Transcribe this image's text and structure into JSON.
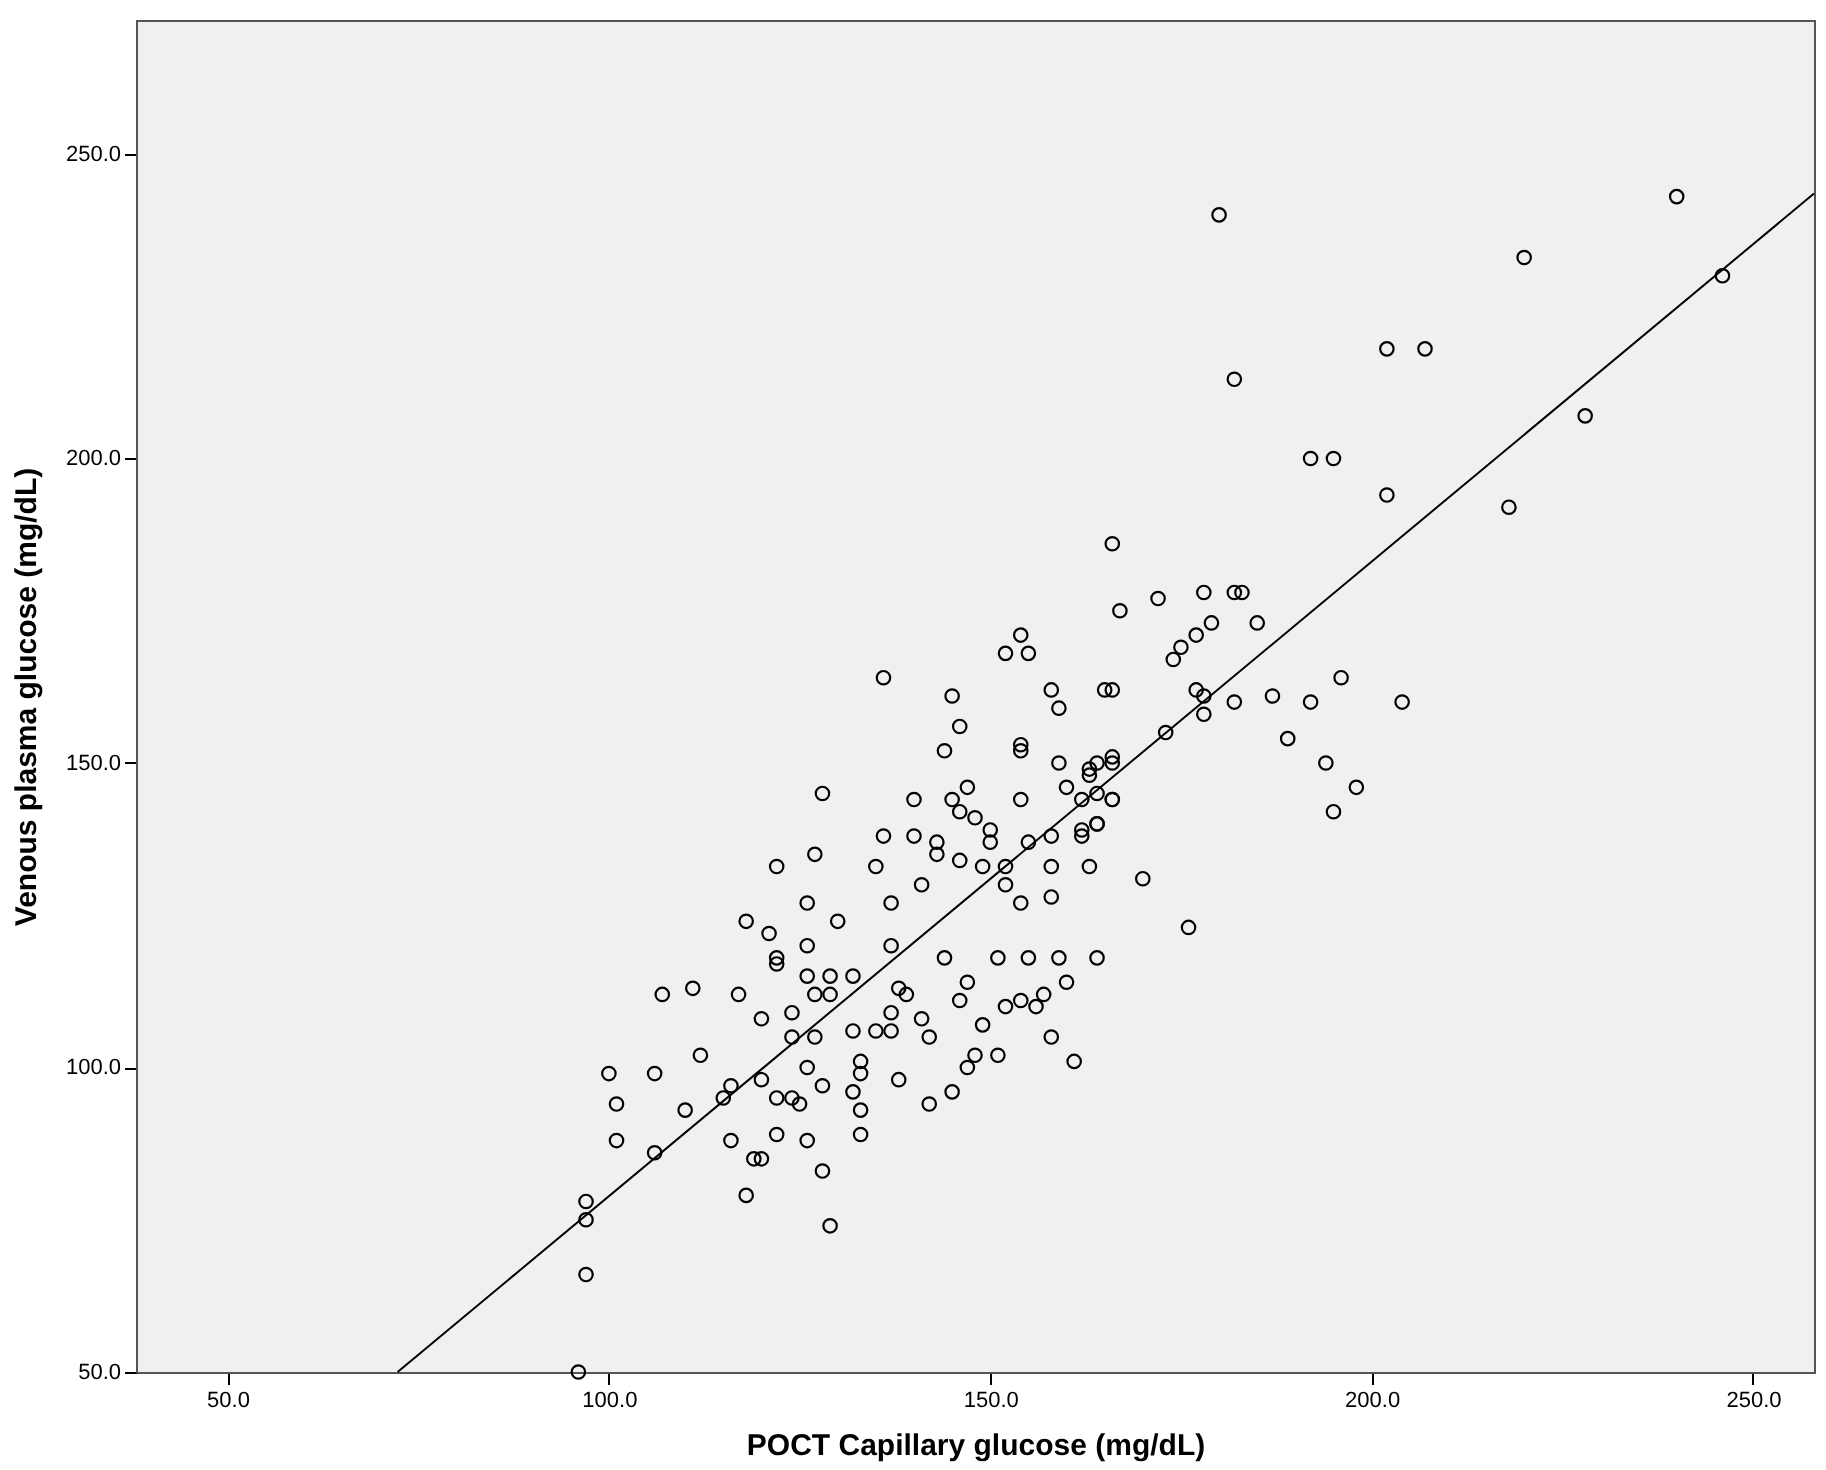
{
  "chart_data": {
    "type": "scatter",
    "xlabel": "POCT Capillary glucose (mg/dL)",
    "ylabel": "Venous plasma glucose (mg/dL)",
    "xlim": [
      38,
      258
    ],
    "ylim": [
      50,
      272
    ],
    "xticks": [
      {
        "value": 50,
        "label": "50.0"
      },
      {
        "value": 100,
        "label": "100.0"
      },
      {
        "value": 150,
        "label": "150.0"
      },
      {
        "value": 200,
        "label": "200.0"
      },
      {
        "value": 250,
        "label": "250.0"
      }
    ],
    "yticks": [
      {
        "value": 50,
        "label": "50.0"
      },
      {
        "value": 100,
        "label": "100.0"
      },
      {
        "value": 150,
        "label": "150.0"
      },
      {
        "value": 200,
        "label": "200.0"
      },
      {
        "value": 250,
        "label": "250.0"
      }
    ],
    "grid": false,
    "series": [
      {
        "color": "#000000",
        "marker": "circle",
        "x": [
          180,
          240,
          220,
          246,
          202,
          207,
          182,
          228,
          192,
          195,
          202,
          218,
          166,
          167,
          172,
          178,
          182,
          183,
          179,
          185,
          177,
          175,
          174,
          166,
          177,
          178,
          178,
          182,
          187,
          192,
          196,
          204,
          173,
          189,
          194,
          198,
          195,
          166,
          166,
          163,
          164,
          162,
          136,
          154,
          155,
          152,
          145,
          146,
          144,
          158,
          159,
          165,
          154,
          154,
          159,
          164,
          163,
          166,
          128,
          140,
          145,
          147,
          146,
          154,
          160,
          162,
          164,
          166,
          148,
          150,
          150,
          158,
          162,
          164,
          136,
          140,
          143,
          143,
          146,
          149,
          152,
          155,
          158,
          163,
          170,
          176,
          122,
          127,
          135,
          141,
          152,
          154,
          158,
          126,
          130,
          137,
          121,
          126,
          137,
          144,
          151,
          155,
          159,
          164,
          160,
          122,
          126,
          129,
          132,
          127,
          129,
          138,
          139,
          146,
          147,
          149,
          152,
          154,
          156,
          157,
          120,
          124,
          124,
          127,
          132,
          135,
          137,
          137,
          141,
          142,
          158,
          161,
          148,
          151,
          147,
          145,
          142,
          138,
          133,
          133,
          132,
          128,
          126,
          122,
          124,
          125,
          133,
          133,
          122,
          126,
          128,
          120,
          129,
          118,
          122,
          107,
          111,
          117,
          100,
          106,
          112,
          101,
          110,
          116,
          115,
          120,
          101,
          106,
          116,
          119,
          118,
          97,
          97,
          97,
          96
        ],
        "values": [
          240,
          243,
          233,
          230,
          218,
          218,
          213,
          207,
          200,
          200,
          194,
          192,
          186,
          175,
          177,
          178,
          178,
          178,
          173,
          173,
          171,
          169,
          167,
          162,
          162,
          161,
          158,
          160,
          161,
          160,
          164,
          160,
          155,
          154,
          150,
          146,
          142,
          151,
          144,
          149,
          140,
          138,
          164,
          171,
          168,
          168,
          161,
          156,
          152,
          162,
          159,
          162,
          153,
          152,
          150,
          150,
          148,
          150,
          145,
          144,
          144,
          146,
          142,
          144,
          146,
          144,
          145,
          144,
          141,
          139,
          137,
          138,
          139,
          140,
          138,
          138,
          137,
          135,
          134,
          133,
          133,
          137,
          133,
          133,
          131,
          123,
          133,
          135,
          133,
          130,
          130,
          127,
          128,
          127,
          124,
          127,
          122,
          120,
          120,
          118,
          118,
          118,
          118,
          118,
          114,
          118,
          115,
          115,
          115,
          112,
          112,
          113,
          112,
          111,
          114,
          107,
          110,
          111,
          110,
          112,
          108,
          109,
          105,
          105,
          106,
          106,
          106,
          109,
          108,
          105,
          105,
          101,
          102,
          102,
          100,
          96,
          94,
          98,
          101,
          99,
          96,
          97,
          100,
          95,
          95,
          94,
          93,
          89,
          89,
          88,
          83,
          85,
          74,
          124,
          117,
          112,
          113,
          112,
          99,
          99,
          102,
          94,
          93,
          97,
          95,
          98,
          88,
          86,
          88,
          85,
          79,
          78,
          75,
          66,
          50
        ]
      },
      {
        "type": "line",
        "color": "#000000",
        "line_style": "solid",
        "marker": "none",
        "x": [
          72.3,
          258
        ],
        "values": [
          50,
          243.5
        ]
      }
    ]
  }
}
